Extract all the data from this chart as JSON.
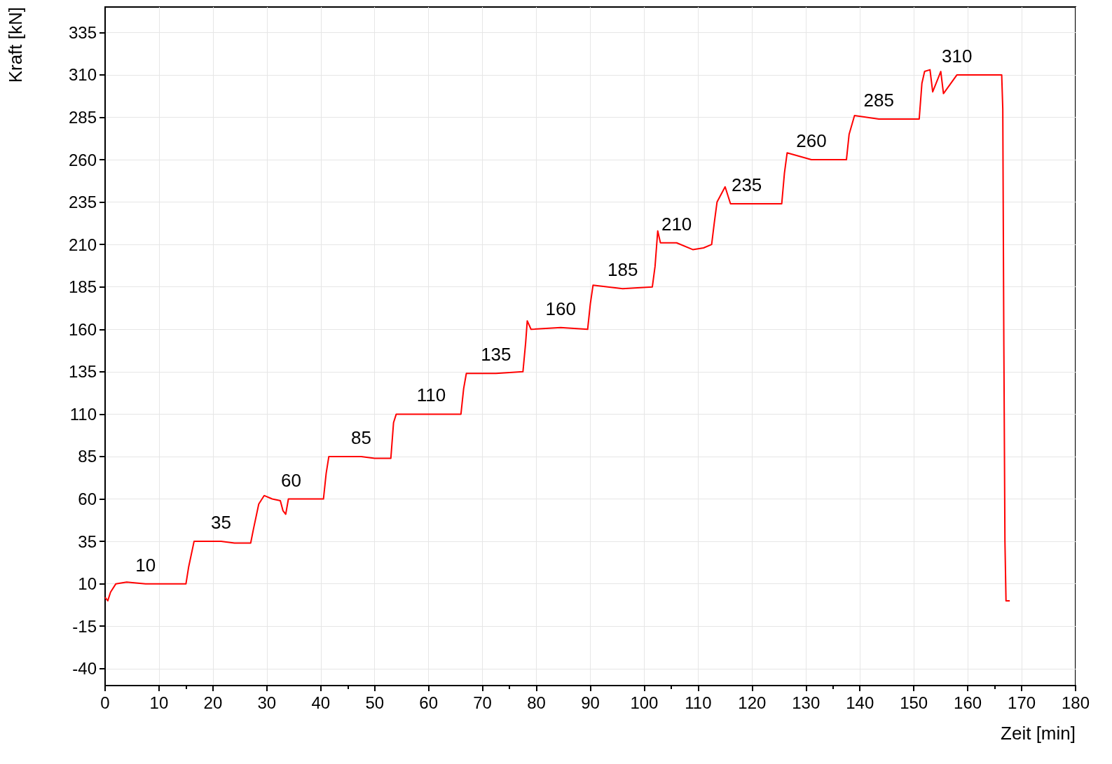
{
  "chart_data": {
    "type": "line",
    "xlabel": "Zeit [min]",
    "ylabel": "Kraft [kN]",
    "xlim": [
      0,
      180
    ],
    "xticks": [
      0,
      10,
      20,
      30,
      40,
      50,
      60,
      70,
      80,
      90,
      100,
      110,
      120,
      130,
      140,
      150,
      160,
      170,
      180
    ],
    "ylim": [
      -50,
      350
    ],
    "yticks": [
      -40,
      -15,
      10,
      35,
      60,
      85,
      110,
      135,
      160,
      185,
      210,
      235,
      260,
      285,
      310,
      335
    ],
    "grid": true,
    "marker": "none",
    "line_style": "solid",
    "series": [
      {
        "color": "#ff0000",
        "x": [
          0,
          0.5,
          1,
          2,
          4,
          7.5,
          12,
          15,
          15.5,
          16.5,
          21.5,
          24,
          27,
          27.5,
          28.5,
          29.5,
          31,
          32.5,
          33,
          33.5,
          34,
          34.5,
          38,
          40.5,
          41,
          41.5,
          47.5,
          50,
          53,
          53.5,
          54,
          60.5,
          62,
          66,
          66.5,
          67,
          72.5,
          77.5,
          78,
          78.3,
          79,
          84.5,
          89.5,
          90,
          90.5,
          96,
          101.5,
          102,
          102.5,
          103,
          106,
          109,
          111,
          112.5,
          113,
          113.5,
          115,
          116,
          119,
          125.5,
          126,
          126.5,
          131,
          137.5,
          138,
          139,
          143.5,
          151,
          151.5,
          152,
          153,
          153.5,
          155,
          155.5,
          158,
          166.3,
          166.5,
          166.7,
          166.9,
          167.1,
          167.8
        ],
        "values": [
          2,
          0,
          5,
          10,
          11,
          10,
          10,
          10,
          20,
          35,
          35,
          34,
          34,
          42,
          57,
          62,
          60,
          59,
          53,
          51,
          60,
          60,
          60,
          60,
          75,
          85,
          85,
          84,
          84,
          105,
          110,
          110,
          110,
          110,
          125,
          134,
          134,
          135,
          152,
          165,
          160,
          161,
          160,
          175,
          186,
          184,
          185,
          197,
          218,
          211,
          211,
          207,
          208,
          210,
          223,
          235,
          244,
          234,
          234,
          234,
          252,
          264,
          260,
          260,
          275,
          286,
          284,
          284,
          305,
          312,
          313,
          300,
          312,
          299,
          310,
          310,
          290,
          150,
          35,
          0,
          0
        ]
      }
    ],
    "annotations": [
      {
        "text": "10",
        "x": 7.5,
        "y": 10
      },
      {
        "text": "35",
        "x": 21.5,
        "y": 35
      },
      {
        "text": "60",
        "x": 34.5,
        "y": 60
      },
      {
        "text": "85",
        "x": 47.5,
        "y": 85
      },
      {
        "text": "110",
        "x": 60.5,
        "y": 110
      },
      {
        "text": "135",
        "x": 72.5,
        "y": 134
      },
      {
        "text": "160",
        "x": 84.5,
        "y": 161
      },
      {
        "text": "185",
        "x": 96,
        "y": 184
      },
      {
        "text": "210",
        "x": 106,
        "y": 211
      },
      {
        "text": "235",
        "x": 119,
        "y": 234
      },
      {
        "text": "260",
        "x": 131,
        "y": 260
      },
      {
        "text": "285",
        "x": 143.5,
        "y": 284
      },
      {
        "text": "310",
        "x": 158,
        "y": 310
      }
    ]
  }
}
